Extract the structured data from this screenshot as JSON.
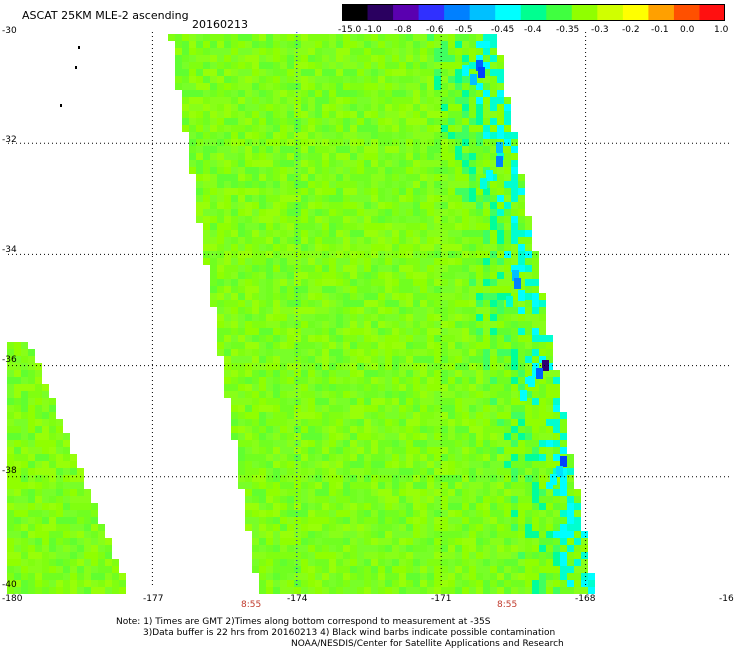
{
  "header": {
    "title": "ASCAT 25KM MLE-2 ascending",
    "date": "20160213"
  },
  "colorbar": {
    "labels": [
      "-15.0",
      "-1.0",
      "-0.8",
      "-0.6",
      "-0.5",
      "-0.45",
      "-0.4",
      "-0.35",
      "-0.3",
      "-0.2",
      "-0.1",
      "0.0",
      "1.0"
    ],
    "colors": [
      "#000000",
      "#2a0060",
      "#5a00b0",
      "#3030ff",
      "#0080ff",
      "#00c0ff",
      "#00ffff",
      "#00ff90",
      "#40ff40",
      "#90ff00",
      "#d0ff00",
      "#ffff00",
      "#ffa000",
      "#ff5000",
      "#ff1010"
    ]
  },
  "axes": {
    "lat_labels": [
      "-30",
      "-32",
      "-34",
      "-36",
      "-38",
      "-40"
    ],
    "lon_labels": [
      "-180",
      "-177",
      "-174",
      "-171",
      "-168",
      "-16"
    ],
    "pass_times": [
      "8:55",
      "8:55"
    ]
  },
  "notes": [
    "Note: 1) Times are GMT 2)Times along bottom correspond to measurement at -35S",
    "3)Data buffer is 22 hrs from 20160213 4) Black wind barbs indicate possible contamination",
    "NOAA/NESDIS/Center for Satellite Applications and Research"
  ]
}
